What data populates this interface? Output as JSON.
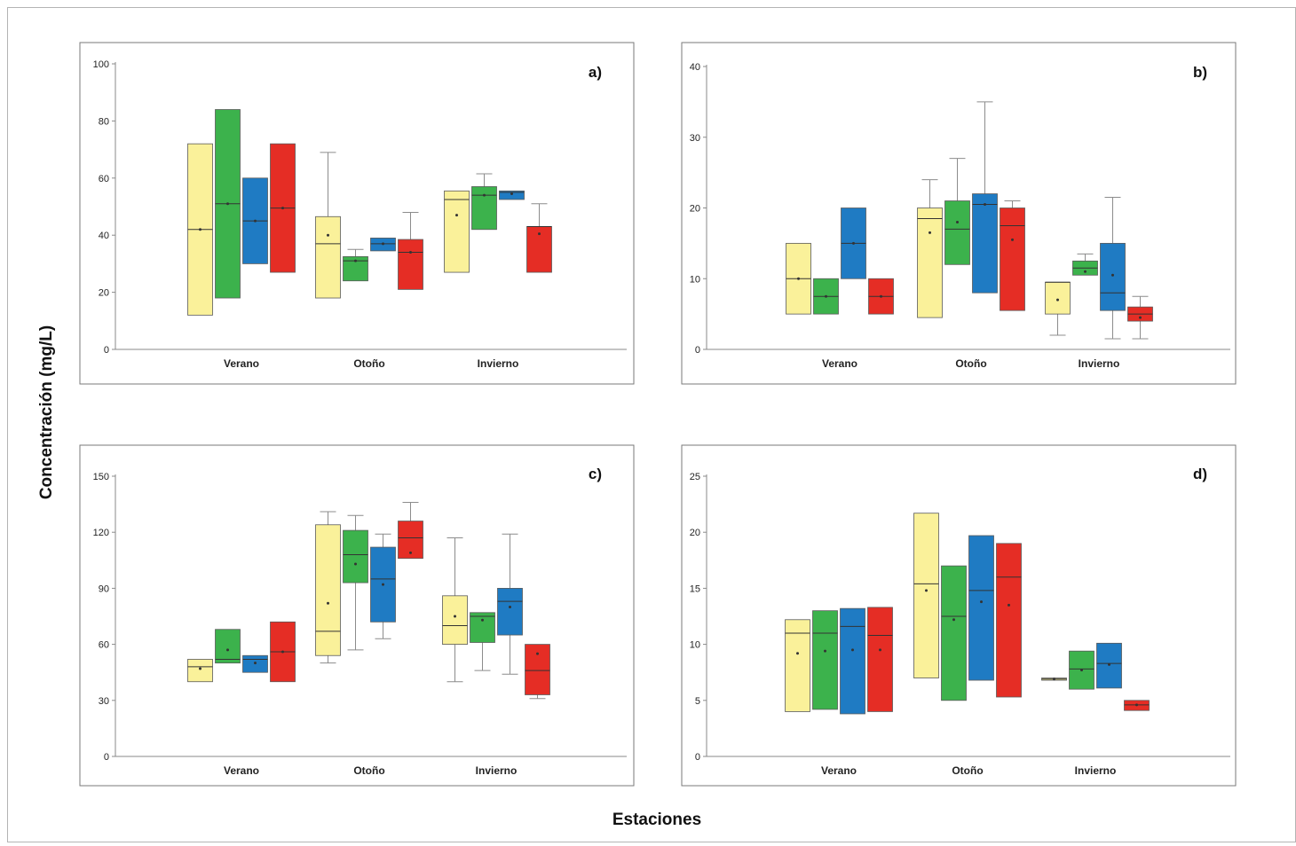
{
  "figure": {
    "y_axis_label": "Concentración (mg/L)",
    "x_axis_label": "Estaciones"
  },
  "colors": {
    "yellow": "#faf19a",
    "green": "#3cb24c",
    "blue": "#1f7bc3",
    "red": "#e52d25"
  },
  "chart_data": [
    {
      "type": "boxplot",
      "panel_label": "a)",
      "categories": [
        "Verano",
        "Otoño",
        "Invierno"
      ],
      "ylim": [
        0,
        100
      ],
      "yticks": [
        0,
        20,
        40,
        60,
        80,
        100
      ],
      "series_colors": [
        "yellow",
        "green",
        "blue",
        "red"
      ],
      "boxes": [
        [
          {
            "min": 12,
            "q1": 12,
            "median": 42,
            "q3": 72,
            "max": 72,
            "mean": 42
          },
          {
            "min": 18,
            "q1": 18,
            "median": 51,
            "q3": 84,
            "max": 84,
            "mean": 51
          },
          {
            "min": 30,
            "q1": 30,
            "median": 45,
            "q3": 60,
            "max": 60,
            "mean": 45
          },
          {
            "min": 27,
            "q1": 27,
            "median": 49.5,
            "q3": 72,
            "max": 72,
            "mean": 49.5
          }
        ],
        [
          {
            "min": 18,
            "q1": 18,
            "median": 37,
            "q3": 46.5,
            "max": 69,
            "mean": 40
          },
          {
            "min": 24,
            "q1": 24,
            "median": 31,
            "q3": 32.5,
            "max": 35,
            "mean": 31
          },
          {
            "min": 34.5,
            "q1": 34.5,
            "median": 37,
            "q3": 39,
            "max": 39,
            "mean": 37
          },
          {
            "min": 21,
            "q1": 21,
            "median": 34,
            "q3": 38.5,
            "max": 48,
            "mean": 34
          }
        ],
        [
          {
            "min": 27,
            "q1": 27,
            "median": 52.5,
            "q3": 55.5,
            "max": 55.5,
            "mean": 47
          },
          {
            "min": 42,
            "q1": 42,
            "median": 54,
            "q3": 57,
            "max": 61.5,
            "mean": 54
          },
          {
            "min": 52.5,
            "q1": 52.5,
            "median": 55,
            "q3": 55.5,
            "max": 55.5,
            "mean": 54.5
          },
          {
            "min": 27,
            "q1": 27,
            "median": 43,
            "q3": 43,
            "max": 51,
            "mean": 40.5
          }
        ]
      ]
    },
    {
      "type": "boxplot",
      "panel_label": "b)",
      "categories": [
        "Verano",
        "Otoño",
        "Invierno"
      ],
      "ylim": [
        0,
        40
      ],
      "yticks": [
        0,
        10,
        20,
        30,
        40
      ],
      "series_colors": [
        "yellow",
        "green",
        "blue",
        "red"
      ],
      "boxes": [
        [
          {
            "min": 5,
            "q1": 5,
            "median": 10,
            "q3": 15,
            "max": 15,
            "mean": 10
          },
          {
            "min": 5,
            "q1": 5,
            "median": 7.5,
            "q3": 10,
            "max": 10,
            "mean": 7.5
          },
          {
            "min": 10,
            "q1": 10,
            "median": 15,
            "q3": 20,
            "max": 20,
            "mean": 15
          },
          {
            "min": 5,
            "q1": 5,
            "median": 7.5,
            "q3": 10,
            "max": 10,
            "mean": 7.5
          }
        ],
        [
          {
            "min": 4.5,
            "q1": 4.5,
            "median": 18.5,
            "q3": 20,
            "max": 24,
            "mean": 16.5
          },
          {
            "min": 12,
            "q1": 12,
            "median": 17,
            "q3": 21,
            "max": 27,
            "mean": 18
          },
          {
            "min": 8,
            "q1": 8,
            "median": 20.5,
            "q3": 22,
            "max": 35,
            "mean": 20.5
          },
          {
            "min": 5.5,
            "q1": 5.5,
            "median": 17.5,
            "q3": 20,
            "max": 21,
            "mean": 15.5
          }
        ],
        [
          {
            "min": 2,
            "q1": 5,
            "median": 9.5,
            "q3": 9.5,
            "max": 9.5,
            "mean": 7
          },
          {
            "min": 10.5,
            "q1": 10.5,
            "median": 11.5,
            "q3": 12.5,
            "max": 13.5,
            "mean": 11
          },
          {
            "min": 1.5,
            "q1": 5.5,
            "median": 8,
            "q3": 15,
            "max": 21.5,
            "mean": 10.5
          },
          {
            "min": 1.5,
            "q1": 4,
            "median": 5,
            "q3": 6,
            "max": 7.5,
            "mean": 4.5
          }
        ]
      ]
    },
    {
      "type": "boxplot",
      "panel_label": "c)",
      "categories": [
        "Verano",
        "Otoño",
        "Invierno"
      ],
      "ylim": [
        0,
        150
      ],
      "yticks": [
        0,
        30,
        60,
        90,
        120,
        150
      ],
      "series_colors": [
        "yellow",
        "green",
        "blue",
        "red"
      ],
      "boxes": [
        [
          {
            "min": 40,
            "q1": 40,
            "median": 48,
            "q3": 52,
            "max": 52,
            "mean": 47
          },
          {
            "min": 50,
            "q1": 50,
            "median": 52,
            "q3": 68,
            "max": 68,
            "mean": 57
          },
          {
            "min": 45,
            "q1": 45,
            "median": 52,
            "q3": 54,
            "max": 54,
            "mean": 50
          },
          {
            "min": 40,
            "q1": 40,
            "median": 56,
            "q3": 72,
            "max": 72,
            "mean": 56
          }
        ],
        [
          {
            "min": 50,
            "q1": 54,
            "median": 67,
            "q3": 124,
            "max": 131,
            "mean": 82
          },
          {
            "min": 57,
            "q1": 93,
            "median": 108,
            "q3": 121,
            "max": 129,
            "mean": 103
          },
          {
            "min": 63,
            "q1": 72,
            "median": 95,
            "q3": 112,
            "max": 119,
            "mean": 92
          },
          {
            "min": 106,
            "q1": 106,
            "median": 117,
            "q3": 126,
            "max": 136,
            "mean": 109
          }
        ],
        [
          {
            "min": 40,
            "q1": 60,
            "median": 70,
            "q3": 86,
            "max": 117,
            "mean": 75
          },
          {
            "min": 46,
            "q1": 61,
            "median": 75,
            "q3": 77,
            "max": 77,
            "mean": 73
          },
          {
            "min": 44,
            "q1": 65,
            "median": 83,
            "q3": 90,
            "max": 119,
            "mean": 80
          },
          {
            "min": 31,
            "q1": 33,
            "median": 46,
            "q3": 60,
            "max": 60,
            "mean": 55
          }
        ]
      ]
    },
    {
      "type": "boxplot",
      "panel_label": "d)",
      "categories": [
        "Verano",
        "Otoño",
        "Invierno"
      ],
      "ylim": [
        0,
        25
      ],
      "yticks": [
        0,
        5,
        10,
        15,
        20,
        25
      ],
      "series_colors": [
        "yellow",
        "green",
        "blue",
        "red"
      ],
      "boxes": [
        [
          {
            "min": 4,
            "q1": 4,
            "median": 11,
            "q3": 12.2,
            "max": 12.2,
            "mean": 9.2
          },
          {
            "min": 4.2,
            "q1": 4.2,
            "median": 11,
            "q3": 13,
            "max": 13,
            "mean": 9.4
          },
          {
            "min": 3.8,
            "q1": 3.8,
            "median": 11.6,
            "q3": 13.2,
            "max": 13.2,
            "mean": 9.5
          },
          {
            "min": 4,
            "q1": 4,
            "median": 10.8,
            "q3": 13.3,
            "max": 13.3,
            "mean": 9.5
          }
        ],
        [
          {
            "min": 7,
            "q1": 7,
            "median": 15.4,
            "q3": 21.7,
            "max": 21.7,
            "mean": 14.8
          },
          {
            "min": 5,
            "q1": 5,
            "median": 12.5,
            "q3": 17,
            "max": 17,
            "mean": 12.2
          },
          {
            "min": 6.8,
            "q1": 6.8,
            "median": 14.8,
            "q3": 19.7,
            "max": 19.7,
            "mean": 13.8
          },
          {
            "min": 5.3,
            "q1": 5.3,
            "median": 16,
            "q3": 19,
            "max": 19,
            "mean": 13.5
          }
        ],
        [
          {
            "min": 6.8,
            "q1": 6.8,
            "median": 6.9,
            "q3": 7,
            "max": 7,
            "mean": 6.9
          },
          {
            "min": 6,
            "q1": 6,
            "median": 7.8,
            "q3": 9.4,
            "max": 9.4,
            "mean": 7.7
          },
          {
            "min": 6.1,
            "q1": 6.1,
            "median": 8.3,
            "q3": 10.1,
            "max": 10.1,
            "mean": 8.2
          },
          {
            "min": 4.1,
            "q1": 4.1,
            "median": 4.6,
            "q3": 5,
            "max": 5,
            "mean": 4.6
          }
        ]
      ]
    }
  ]
}
